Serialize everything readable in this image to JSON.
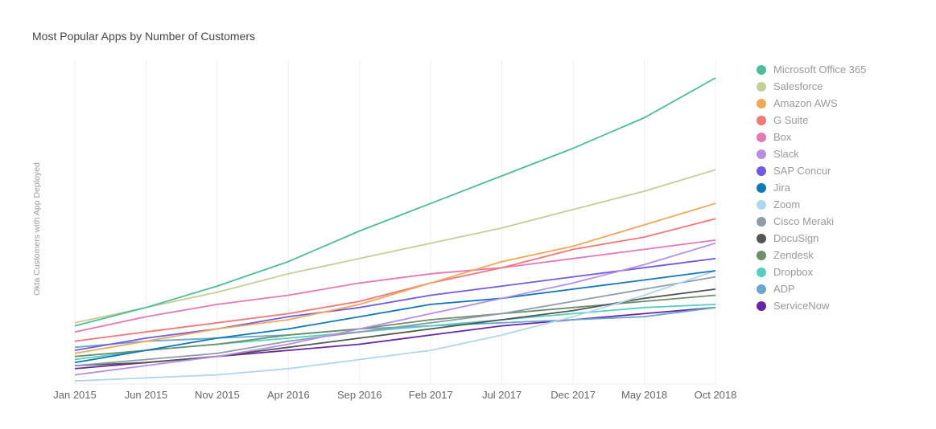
{
  "chart_data": {
    "type": "line",
    "title": "Most Popular Apps by Number of Customers",
    "xlabel": "",
    "ylabel": "Okta Customers with App Deployed",
    "x": [
      "Jan 2015",
      "Jun 2015",
      "Nov 2015",
      "Apr 2016",
      "Sep 2016",
      "Feb 2017",
      "Jul 2017",
      "Dec 2017",
      "May 2018",
      "Oct 2018"
    ],
    "ylim": [
      0,
      100
    ],
    "grid": "vertical",
    "legend": "right",
    "series": [
      {
        "name": "Microsoft Office 365",
        "color": "#4dbd98",
        "values": [
          19,
          25,
          32,
          40,
          50,
          59,
          68,
          77,
          87,
          100
        ]
      },
      {
        "name": "Salesforce",
        "color": "#c2cf96",
        "values": [
          20,
          25,
          30,
          36,
          41,
          46,
          51,
          57,
          63,
          70
        ]
      },
      {
        "name": "Amazon AWS",
        "color": "#f0a758",
        "values": [
          10,
          14,
          18,
          21,
          26,
          33,
          40,
          45,
          52,
          59
        ]
      },
      {
        "name": "G Suite",
        "color": "#f07876",
        "values": [
          14,
          17,
          20,
          23,
          27,
          33,
          38,
          44,
          48,
          54
        ]
      },
      {
        "name": "Box",
        "color": "#e579b5",
        "values": [
          17,
          22,
          26,
          29,
          33,
          36,
          38,
          41,
          44,
          47
        ]
      },
      {
        "name": "Slack",
        "color": "#b68ee6",
        "values": [
          3,
          6,
          9,
          13,
          18,
          23,
          28,
          33,
          39,
          46
        ]
      },
      {
        "name": "SAP Concur",
        "color": "#6f5ce0",
        "values": [
          11,
          15,
          18,
          22,
          25,
          29,
          32,
          35,
          38,
          41
        ]
      },
      {
        "name": "Jira",
        "color": "#1177b5",
        "values": [
          7,
          11,
          15,
          18,
          22,
          26,
          28,
          31,
          34,
          37
        ]
      },
      {
        "name": "Zoom",
        "color": "#aed7ee",
        "values": [
          1,
          2,
          3,
          5,
          8,
          11,
          16,
          22,
          29,
          37
        ]
      },
      {
        "name": "Cisco Meraki",
        "color": "#8d9ca9",
        "values": [
          6,
          8,
          10,
          14,
          17,
          20,
          23,
          27,
          31,
          35
        ]
      },
      {
        "name": "DocuSign",
        "color": "#555555",
        "values": [
          6,
          7,
          9,
          12,
          15,
          18,
          21,
          24,
          28,
          31
        ]
      },
      {
        "name": "Zendesk",
        "color": "#6b8f6b",
        "values": [
          9,
          11,
          13,
          16,
          18,
          21,
          23,
          25,
          27,
          29
        ]
      },
      {
        "name": "Dropbox",
        "color": "#54cfc2",
        "values": [
          8,
          11,
          13,
          15,
          17,
          19,
          21,
          23,
          25,
          26
        ]
      },
      {
        "name": "ADP",
        "color": "#6aa7cc",
        "values": [
          12,
          14,
          15,
          16,
          18,
          19,
          20,
          21,
          22,
          25
        ]
      },
      {
        "name": "ServiceNow",
        "color": "#6826a6",
        "values": [
          5,
          7,
          9,
          11,
          13,
          16,
          19,
          21,
          23,
          25
        ]
      }
    ]
  }
}
